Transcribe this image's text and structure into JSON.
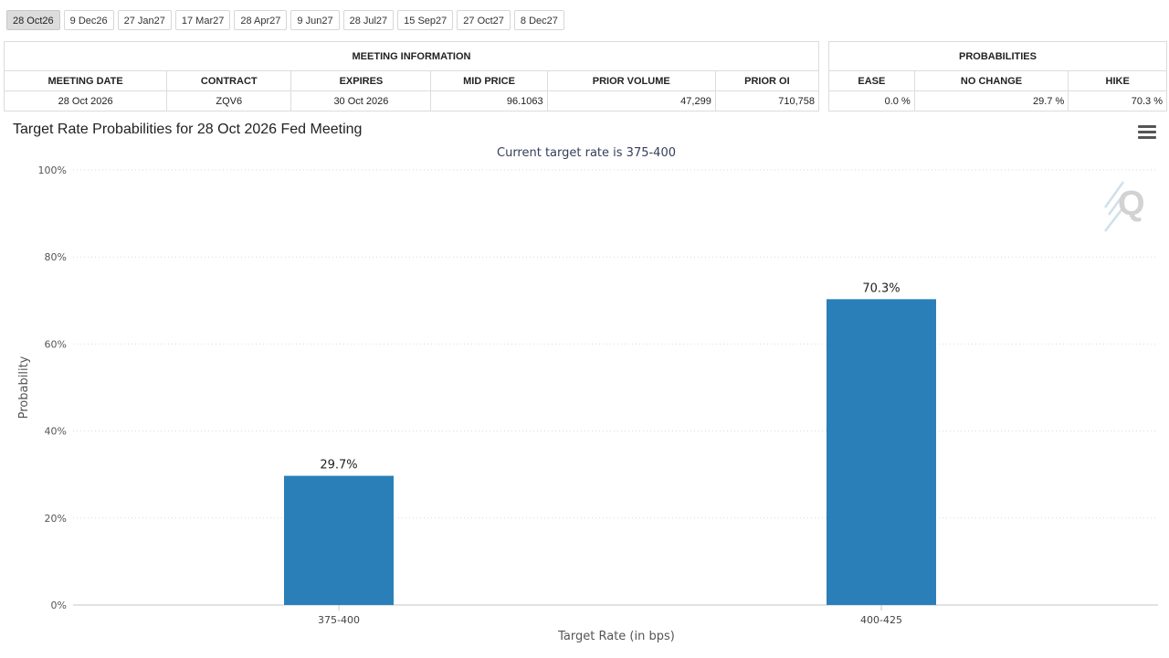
{
  "tabs": [
    "28 Oct26",
    "9 Dec26",
    "27 Jan27",
    "17 Mar27",
    "28 Apr27",
    "9 Jun27",
    "28 Jul27",
    "15 Sep27",
    "27 Oct27",
    "8 Dec27"
  ],
  "active_tab": 0,
  "meeting_info": {
    "header": "MEETING INFORMATION",
    "columns": [
      "MEETING DATE",
      "CONTRACT",
      "EXPIRES",
      "MID PRICE",
      "PRIOR VOLUME",
      "PRIOR OI"
    ],
    "row": [
      "28 Oct 2026",
      "ZQV6",
      "30 Oct 2026",
      "96.1063",
      "47,299",
      "710,758"
    ]
  },
  "probabilities": {
    "header": "PROBABILITIES",
    "columns": [
      "EASE",
      "NO CHANGE",
      "HIKE"
    ],
    "row": [
      "0.0 %",
      "29.7 %",
      "70.3 %"
    ]
  },
  "chart": {
    "title": "Target Rate Probabilities for 28 Oct 2026 Fed Meeting",
    "subtitle": "Current target rate is 375-400",
    "menu_icon": "hamburger-menu-icon",
    "logo_icon": "q-logo-icon"
  },
  "colors": {
    "bar": "#2b7fb8",
    "subtitle": "#333e5a",
    "grid": "#d9d9d9"
  },
  "chart_data": {
    "type": "bar",
    "title": "Target Rate Probabilities for 28 Oct 2026 Fed Meeting",
    "subtitle": "Current target rate is 375-400",
    "xlabel": "Target Rate (in bps)",
    "ylabel": "Probability",
    "categories": [
      "375-400",
      "400-425"
    ],
    "values": [
      29.7,
      70.3
    ],
    "data_labels": [
      "29.7%",
      "70.3%"
    ],
    "ylim": [
      0,
      100
    ],
    "yticks": [
      0,
      20,
      40,
      60,
      80,
      100
    ],
    "ytick_labels": [
      "0%",
      "20%",
      "40%",
      "60%",
      "80%",
      "100%"
    ],
    "grid": true
  }
}
